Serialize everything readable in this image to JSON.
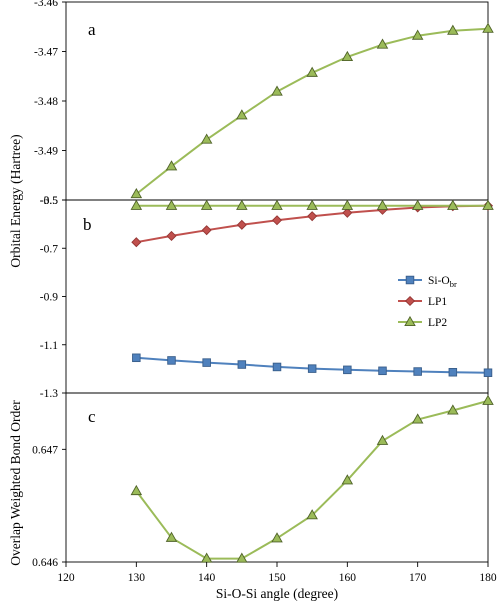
{
  "chart_data": [
    {
      "panel": "a",
      "type": "line",
      "x": [
        130,
        135,
        140,
        145,
        150,
        155,
        160,
        165,
        170,
        175,
        180
      ],
      "series": [
        {
          "key": "LP2",
          "color": "#9bbb59",
          "stroke": "#4f6228",
          "marker": "triangle",
          "values": [
            -3.4988,
            -3.4932,
            -3.4878,
            -3.4829,
            -3.4781,
            -3.4743,
            -3.4711,
            -3.4686,
            -3.4668,
            -3.4658,
            -3.4654
          ]
        }
      ],
      "ylim": [
        -3.5,
        -3.46
      ],
      "yticks": [
        "-3.5",
        "-3.49",
        "-3.48",
        "-3.47",
        "-3.46"
      ],
      "ytick_values": [
        -3.5,
        -3.49,
        -3.48,
        -3.47,
        -3.46
      ]
    },
    {
      "panel": "b",
      "type": "line",
      "x": [
        130,
        135,
        140,
        145,
        150,
        155,
        160,
        165,
        170,
        175,
        180
      ],
      "series": [
        {
          "key": "SiObr",
          "color": "#4f81bd",
          "stroke": "#385d8a",
          "marker": "square",
          "values": [
            -1.154,
            -1.165,
            -1.174,
            -1.182,
            -1.192,
            -1.199,
            -1.204,
            -1.208,
            -1.211,
            -1.214,
            -1.216
          ]
        },
        {
          "key": "LP1",
          "color": "#c0504d",
          "stroke": "#943634",
          "marker": "diamond",
          "values": [
            -0.675,
            -0.649,
            -0.625,
            -0.603,
            -0.584,
            -0.567,
            -0.553,
            -0.541,
            -0.531,
            -0.526,
            -0.524
          ]
        },
        {
          "key": "LP2",
          "color": "#9bbb59",
          "stroke": "#4f6228",
          "marker": "triangle",
          "values": [
            -0.524,
            -0.524,
            -0.524,
            -0.524,
            -0.524,
            -0.524,
            -0.524,
            -0.524,
            -0.524,
            -0.524,
            -0.524
          ]
        }
      ],
      "ylim": [
        -1.3,
        -0.5
      ],
      "yticks": [
        "-1.3",
        "-1.1",
        "-0.9",
        "-0.7",
        "-0.5"
      ],
      "ytick_values": [
        -1.3,
        -1.1,
        -0.9,
        -0.7,
        -0.5
      ],
      "legend": {
        "placement": "right",
        "entries": [
          {
            "key": "SiObr",
            "main": "Si-O",
            "sub": "br"
          },
          {
            "key": "LP1",
            "main": "LP1",
            "sub": ""
          },
          {
            "key": "LP2",
            "main": "LP2",
            "sub": ""
          }
        ]
      }
    },
    {
      "panel": "c",
      "type": "line",
      "x": [
        130,
        135,
        140,
        145,
        150,
        155,
        160,
        165,
        170,
        175,
        180
      ],
      "series": [
        {
          "key": "LP2",
          "color": "#9bbb59",
          "stroke": "#4f6228",
          "marker": "triangle",
          "values": [
            0.64663,
            0.646215,
            0.64603,
            0.64603,
            0.64621,
            0.646415,
            0.646725,
            0.647075,
            0.647265,
            0.647345,
            0.64743
          ]
        }
      ],
      "ylim": [
        0.646,
        0.6475
      ],
      "yticks": [
        "0.646",
        "0.647"
      ],
      "ytick_values": [
        0.646,
        0.647
      ]
    }
  ],
  "labels": {
    "panel_a": "a",
    "panel_b": "b",
    "panel_c": "c",
    "ylabel_energy": "Orbital Energy (Hartree)",
    "ylabel_bond": "Overlap Weighted Bond Order",
    "xlabel": "Si-O-Si angle (degree)"
  },
  "x_axis": {
    "ticks": [
      "120",
      "130",
      "140",
      "150",
      "160",
      "170",
      "180"
    ],
    "tick_values": [
      120,
      130,
      140,
      150,
      160,
      170,
      180
    ],
    "xlim": [
      120,
      180
    ]
  }
}
